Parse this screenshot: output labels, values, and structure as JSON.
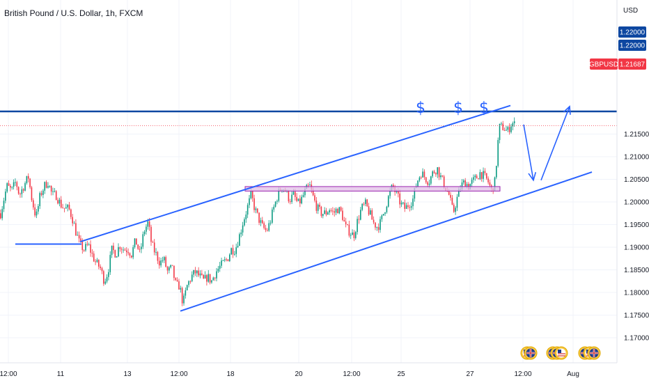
{
  "header": {
    "title": "British Pound / U.S. Dollar, 1h, FXCM",
    "currency": "USD"
  },
  "price_tags": [
    {
      "label": "1.22000",
      "bg": "#0d47a1",
      "kind": "axis"
    },
    {
      "label": "1.22000",
      "bg": "#0d47a1",
      "kind": "axis"
    },
    {
      "label": "GBPUSD",
      "bg": "#f23645",
      "kind": "symbol"
    },
    {
      "label": "1.21687",
      "bg": "#f23645",
      "kind": "axis"
    }
  ],
  "annotations": {
    "dollar_signs": [
      "$",
      "$",
      "$"
    ]
  },
  "colors": {
    "up": "#089981",
    "down": "#f23645",
    "drawing": "#2962ff",
    "resistance": "#0d47a1",
    "zone_fill": "#e1bee7",
    "zone_border": "#9c27b0"
  },
  "chart_data": {
    "type": "candlestick",
    "symbol": "GBPUSD",
    "timeframe": "1h",
    "last_price": 1.21687,
    "ylim": [
      1.168,
      1.2265
    ],
    "y_ticks": [
      {
        "value": 1.215,
        "label": "1.21500"
      },
      {
        "value": 1.21,
        "label": "1.21000"
      },
      {
        "value": 1.205,
        "label": "1.20500"
      },
      {
        "value": 1.2,
        "label": "1.20000"
      },
      {
        "value": 1.195,
        "label": "1.19500"
      },
      {
        "value": 1.19,
        "label": "1.19000"
      },
      {
        "value": 1.185,
        "label": "1.18500"
      },
      {
        "value": 1.18,
        "label": "1.18000"
      },
      {
        "value": 1.175,
        "label": "1.17500"
      },
      {
        "value": 1.17,
        "label": "1.17000"
      }
    ],
    "x_ticks": [
      "12:00",
      "11",
      "13",
      "12:00",
      "18",
      "20",
      "12:00",
      "25",
      "27",
      "12:00",
      "Aug"
    ],
    "close_path": [
      [
        0,
        1.1975
      ],
      [
        9,
        1.2035
      ],
      [
        16,
        1.2025
      ],
      [
        22,
        1.2045
      ],
      [
        27,
        1.2015
      ],
      [
        33,
        1.2035
      ],
      [
        40,
        1.2055
      ],
      [
        45,
        1.2005
      ],
      [
        51,
        1.1965
      ],
      [
        57,
        1.2015
      ],
      [
        63,
        1.2035
      ],
      [
        68,
        1.2045
      ],
      [
        74,
        1.2015
      ],
      [
        80,
        1.2015
      ],
      [
        86,
        1.1995
      ],
      [
        92,
        1.1985
      ],
      [
        98,
        1.1985
      ],
      [
        103,
        1.1965
      ],
      [
        108,
        1.1935
      ],
      [
        114,
        1.1905
      ],
      [
        120,
        1.1895
      ],
      [
        126,
        1.1905
      ],
      [
        131,
        1.1885
      ],
      [
        137,
        1.1865
      ],
      [
        143,
        1.1855
      ],
      [
        149,
        1.1825
      ],
      [
        154,
        1.1845
      ],
      [
        160,
        1.1895
      ],
      [
        166,
        1.1885
      ],
      [
        171,
        1.1905
      ],
      [
        177,
        1.1895
      ],
      [
        183,
        1.1895
      ],
      [
        188,
        1.1885
      ],
      [
        194,
        1.1915
      ],
      [
        200,
        1.1885
      ],
      [
        206,
        1.1935
      ],
      [
        212,
        1.1955
      ],
      [
        217,
        1.1905
      ],
      [
        223,
        1.1885
      ],
      [
        229,
        1.1865
      ],
      [
        234,
        1.1875
      ],
      [
        240,
        1.1845
      ],
      [
        246,
        1.1855
      ],
      [
        252,
        1.1815
      ],
      [
        257,
        1.1815
      ],
      [
        262,
        1.1775
      ],
      [
        268,
        1.1815
      ],
      [
        274,
        1.1835
      ],
      [
        280,
        1.1845
      ],
      [
        286,
        1.1835
      ],
      [
        292,
        1.1825
      ],
      [
        297,
        1.1835
      ],
      [
        303,
        1.1825
      ],
      [
        309,
        1.1845
      ],
      [
        314,
        1.1855
      ],
      [
        320,
        1.1865
      ],
      [
        326,
        1.1875
      ],
      [
        331,
        1.1895
      ],
      [
        337,
        1.1895
      ],
      [
        343,
        1.1925
      ],
      [
        348,
        1.1955
      ],
      [
        354,
        1.1985
      ],
      [
        360,
        1.2015
      ],
      [
        365,
        1.1985
      ],
      [
        370,
        1.1965
      ],
      [
        376,
        1.1945
      ],
      [
        382,
        1.1935
      ],
      [
        387,
        1.1955
      ],
      [
        392,
        1.1985
      ],
      [
        398,
        1.2015
      ],
      [
        404,
        1.2035
      ],
      [
        409,
        1.2025
      ],
      [
        415,
        1.2005
      ],
      [
        421,
        1.2015
      ],
      [
        427,
        1.1995
      ],
      [
        432,
        1.2005
      ],
      [
        438,
        1.2025
      ],
      [
        444,
        1.2035
      ],
      [
        450,
        1.2005
      ],
      [
        455,
        1.1985
      ],
      [
        461,
        1.1975
      ],
      [
        467,
        1.1975
      ],
      [
        472,
        1.1985
      ],
      [
        478,
        1.1975
      ],
      [
        484,
        1.1985
      ],
      [
        490,
        1.1975
      ],
      [
        495,
        1.1945
      ],
      [
        501,
        1.1935
      ],
      [
        507,
        1.1925
      ],
      [
        512,
        1.1955
      ],
      [
        518,
        1.1985
      ],
      [
        524,
        1.1995
      ],
      [
        530,
        1.1975
      ],
      [
        535,
        1.1955
      ],
      [
        541,
        1.1945
      ],
      [
        546,
        1.1955
      ],
      [
        552,
        1.1985
      ],
      [
        558,
        1.2015
      ],
      [
        563,
        1.2035
      ],
      [
        569,
        1.2015
      ],
      [
        575,
        1.1995
      ],
      [
        581,
        1.1985
      ],
      [
        586,
        1.1995
      ],
      [
        592,
        1.2005
      ],
      [
        598,
        1.2045
      ],
      [
        604,
        1.2065
      ],
      [
        609,
        1.2055
      ],
      [
        615,
        1.2045
      ],
      [
        621,
        1.2065
      ],
      [
        627,
        1.2075
      ],
      [
        632,
        1.2055
      ],
      [
        638,
        1.2035
      ],
      [
        644,
        1.2015
      ],
      [
        650,
        1.1975
      ],
      [
        655,
        1.2005
      ],
      [
        661,
        1.2035
      ],
      [
        667,
        1.2045
      ],
      [
        672,
        1.2035
      ],
      [
        678,
        1.2045
      ],
      [
        684,
        1.2055
      ],
      [
        689,
        1.2065
      ],
      [
        695,
        1.2055
      ],
      [
        700,
        1.2045
      ],
      [
        705,
        1.2025
      ],
      [
        710,
        1.2045
      ],
      [
        714,
        1.2125
      ],
      [
        716,
        1.2165
      ],
      [
        722,
        1.2165
      ],
      [
        728,
        1.2155
      ],
      [
        734,
        1.2175
      ],
      [
        740,
        1.2169
      ]
    ],
    "resistance_level": 1.22,
    "support_resistance_zone": [
      1.2024,
      1.2034
    ],
    "channel": {
      "upper": [
        [
          115,
          1.1912
        ],
        [
          733,
          1.2213
        ]
      ],
      "lower": [
        [
          259,
          1.1759
        ],
        [
          850,
          1.2066
        ]
      ]
    },
    "horizontal_segment": {
      "from_x": 22,
      "to_x": 117,
      "value": 1.1907
    },
    "projection_path": [
      [
        752,
        1.2171
      ],
      [
        766,
        1.2048
      ],
      [
        777,
        1.2048
      ],
      [
        818,
        1.2211
      ]
    ]
  }
}
